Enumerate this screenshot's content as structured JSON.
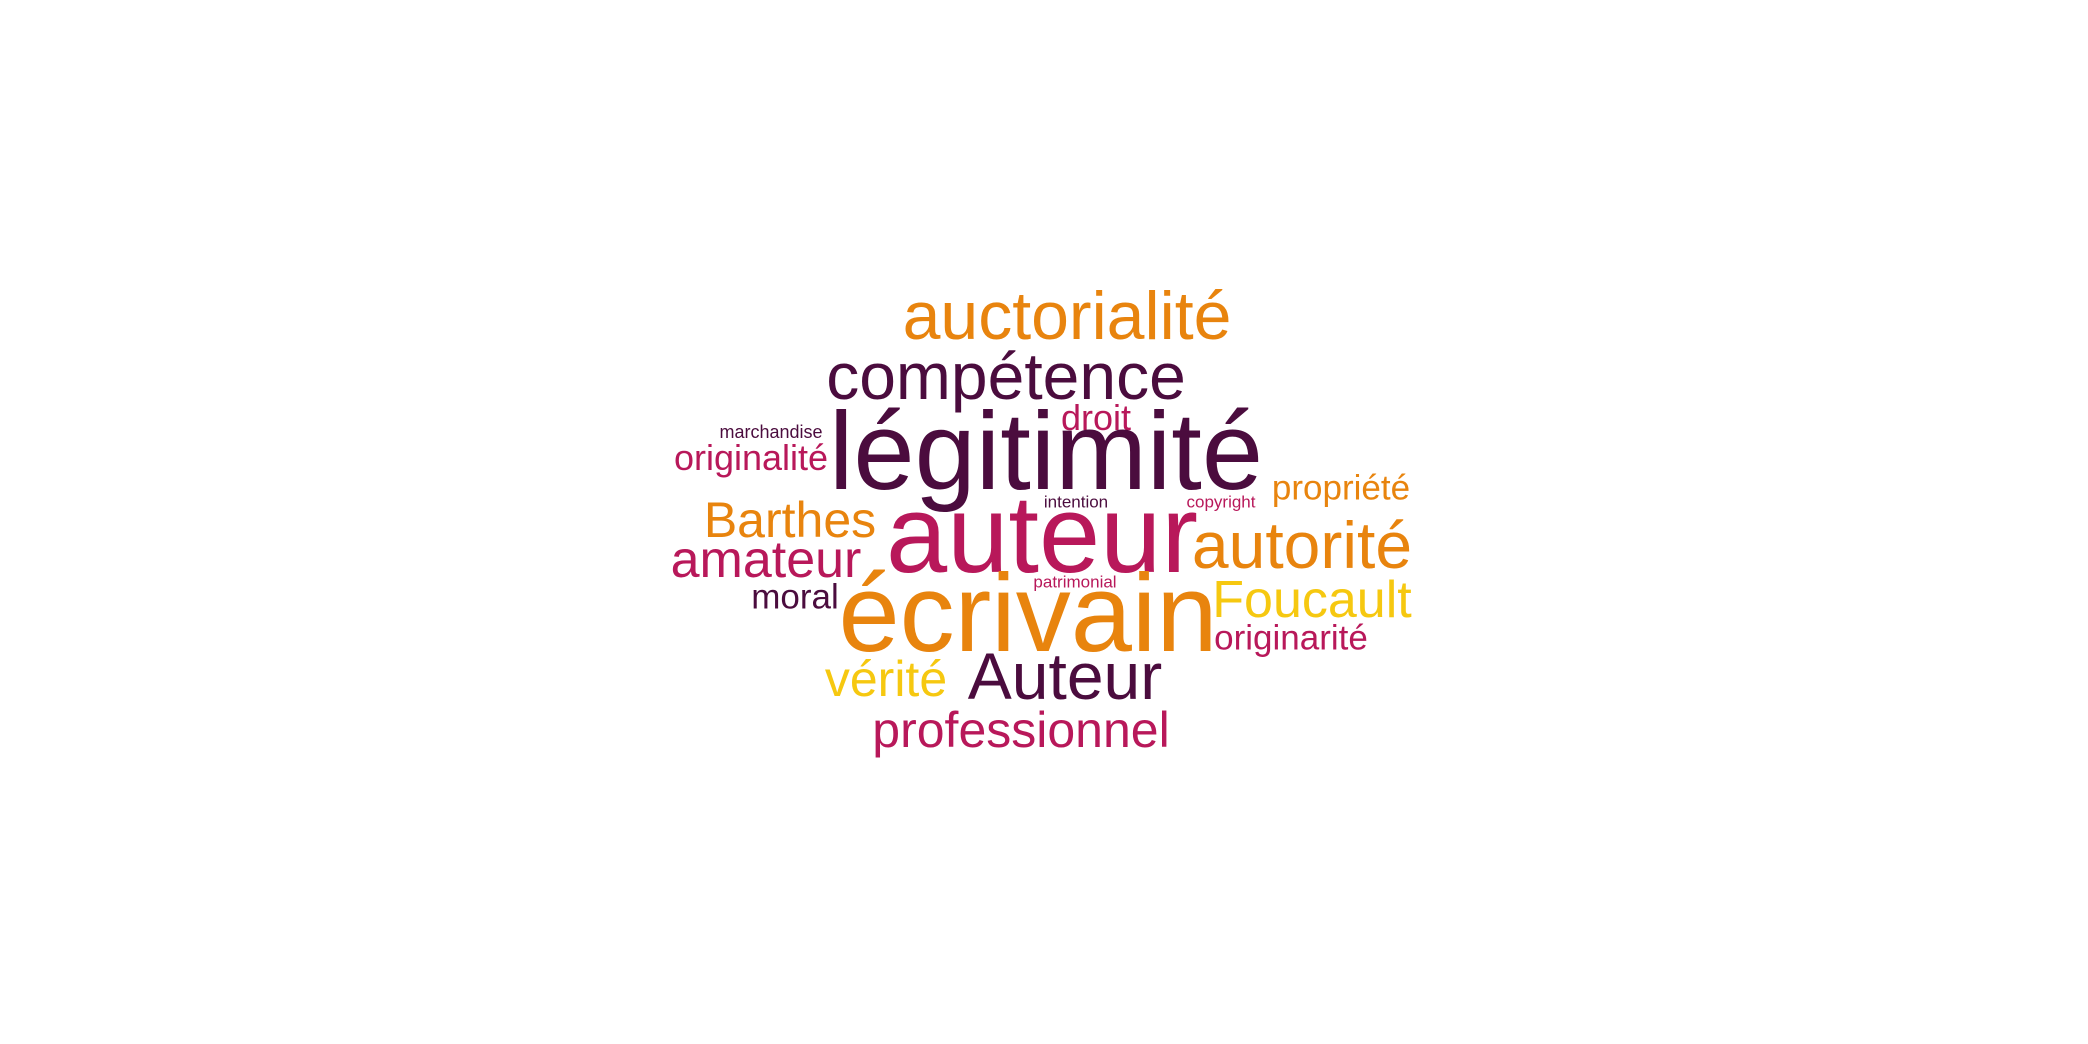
{
  "palette": {
    "dark_purple": "#4b0c3e",
    "crimson": "#b8185a",
    "orange": "#e8840e",
    "yellow": "#f6c810"
  },
  "words": [
    {
      "text": "auctorialité",
      "color": "#e8840e"
    },
    {
      "text": "compétence",
      "color": "#4b0c3e"
    },
    {
      "text": "droit",
      "color": "#b8185a"
    },
    {
      "text": "marchandise",
      "color": "#4b0c3e"
    },
    {
      "text": "légitimité",
      "color": "#4b0c3e"
    },
    {
      "text": "originalité",
      "color": "#b8185a"
    },
    {
      "text": "propriété",
      "color": "#e8840e"
    },
    {
      "text": "intention",
      "color": "#4b0c3e"
    },
    {
      "text": "copyright",
      "color": "#b8185a"
    },
    {
      "text": "Barthes",
      "color": "#e8840e"
    },
    {
      "text": "auteur",
      "color": "#b8185a"
    },
    {
      "text": "autorité",
      "color": "#e8840e"
    },
    {
      "text": "amateur",
      "color": "#b8185a"
    },
    {
      "text": "patrimonial",
      "color": "#b8185a"
    },
    {
      "text": "moral",
      "color": "#4b0c3e"
    },
    {
      "text": "écrivain",
      "color": "#e8840e"
    },
    {
      "text": "Foucault",
      "color": "#f6c810"
    },
    {
      "text": "originarité",
      "color": "#b8185a"
    },
    {
      "text": "vérité",
      "color": "#f6c810"
    },
    {
      "text": "Auteur",
      "color": "#4b0c3e"
    },
    {
      "text": "professionnel",
      "color": "#b8185a"
    }
  ]
}
